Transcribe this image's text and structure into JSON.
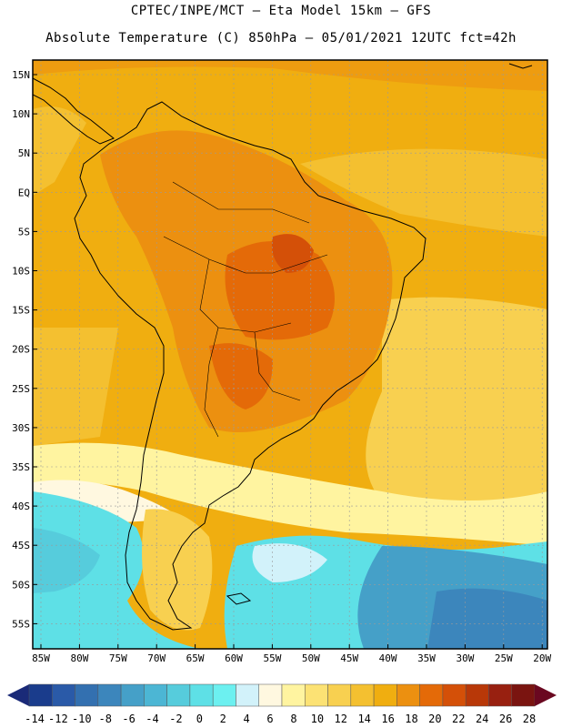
{
  "header": {
    "line1": "CPTEC/INPE/MCT –  Eta Model 15km – GFS",
    "line2": "Absolute Temperature (C) 850hPa – 05/01/2021 12UTC fct=42h"
  },
  "axes": {
    "lat_labels": [
      "15N",
      "10N",
      "5N",
      "EQ",
      "5S",
      "10S",
      "15S",
      "20S",
      "25S",
      "30S",
      "35S",
      "40S",
      "45S",
      "50S",
      "55S"
    ],
    "lon_labels": [
      "85W",
      "80W",
      "75W",
      "70W",
      "65W",
      "60W",
      "55W",
      "50W",
      "45W",
      "40W",
      "35W",
      "30W",
      "25W",
      "20W"
    ]
  },
  "colorbar": {
    "labels": [
      "-14",
      "-12",
      "-10",
      "-8",
      "-6",
      "-4",
      "-2",
      "0",
      "2",
      "4",
      "6",
      "8",
      "10",
      "12",
      "14",
      "16",
      "18",
      "20",
      "22",
      "24",
      "26",
      "28"
    ],
    "colors": [
      "#1a3c8c",
      "#2a5aa8",
      "#3370b0",
      "#3c86bc",
      "#45a0c8",
      "#4cb6d4",
      "#56ccdc",
      "#5ee0e6",
      "#6cf0f0",
      "#d2f2fa",
      "#fff8e0",
      "#fff4a0",
      "#fce274",
      "#f8d050",
      "#f4c030",
      "#f0ae10",
      "#ec9010",
      "#e46a08",
      "#d45008",
      "#b83808",
      "#982010",
      "#7a1410"
    ],
    "arrow_left_color": "#1a2a78",
    "arrow_right_color": "#6a0820"
  },
  "colors": {
    "map_base": "#f0ae10",
    "cold_ocean": "#5ee0e6",
    "grid": "#9a9a9a",
    "coast": "#000000"
  }
}
